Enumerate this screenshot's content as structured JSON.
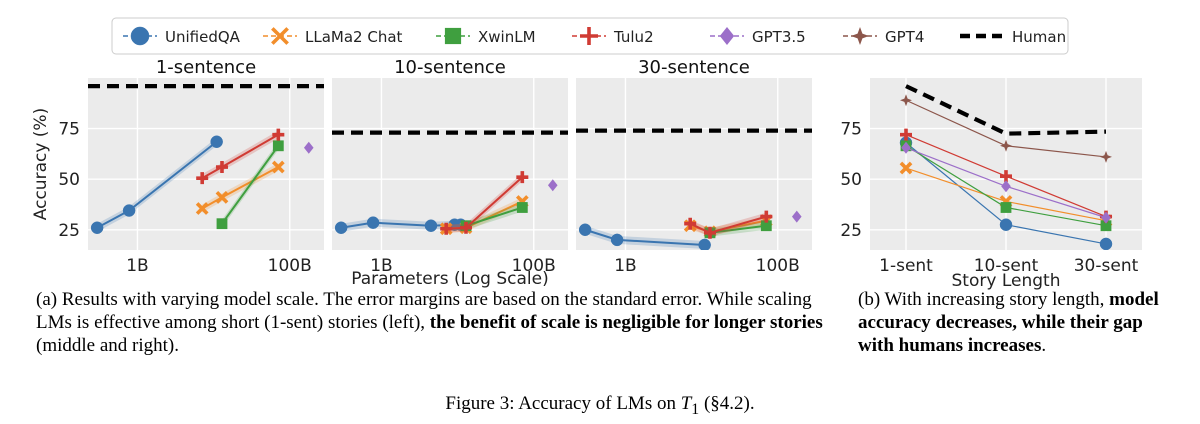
{
  "legend": [
    {
      "name": "UnifiedQA",
      "color": "#3a75b0",
      "marker": "circle"
    },
    {
      "name": "LLaMa2 Chat",
      "color": "#f28e2b",
      "marker": "x"
    },
    {
      "name": "XwinLM",
      "color": "#3f9f3f",
      "marker": "square"
    },
    {
      "name": "Tulu2",
      "color": "#d03b34",
      "marker": "plus"
    },
    {
      "name": "GPT3.5",
      "color": "#9c6fc9",
      "marker": "diamond"
    },
    {
      "name": "GPT4",
      "color": "#8c564b",
      "marker": "star"
    },
    {
      "name": "Human",
      "color": "#000000",
      "marker": "dash"
    }
  ],
  "chart_data": [
    {
      "type": "line",
      "title": "1-sentence",
      "xlabel": "Parameters (Log Scale)",
      "ylabel": "Accuracy (%)",
      "x_scale": "log10",
      "xlim_log10": [
        8.35,
        11.45
      ],
      "ylim": [
        15,
        100
      ],
      "yticks": [
        25,
        50,
        75
      ],
      "ytick_labels": [
        "25",
        "50",
        "75"
      ],
      "xticks_log10": [
        9,
        11
      ],
      "xtick_labels": [
        "1B",
        "100B"
      ],
      "human": 96,
      "series": [
        {
          "name": "UnifiedQA",
          "x_log10": [
            8.47,
            8.89,
            10.04
          ],
          "y": [
            26,
            34.5,
            68.5
          ]
        },
        {
          "name": "LLaMa2 Chat",
          "x_log10": [
            9.85,
            10.11,
            10.85
          ],
          "y": [
            35.5,
            41,
            56
          ]
        },
        {
          "name": "XwinLM",
          "x_log10": [
            10.11,
            10.85
          ],
          "y": [
            28,
            66.5
          ]
        },
        {
          "name": "Tulu2",
          "x_log10": [
            9.85,
            10.11,
            10.85
          ],
          "y": [
            50.5,
            56,
            72
          ]
        },
        {
          "name": "GPT3.5",
          "x_log10": [
            11.25
          ],
          "y": [
            65.5
          ]
        }
      ]
    },
    {
      "type": "line",
      "title": "10-sentence",
      "xlabel": "Parameters (Log Scale)",
      "x_scale": "log10",
      "xlim_log10": [
        8.35,
        11.45
      ],
      "ylim": [
        15,
        100
      ],
      "xticks_log10": [
        9,
        11
      ],
      "xtick_labels": [
        "1B",
        "100B"
      ],
      "human": 73,
      "series": [
        {
          "name": "UnifiedQA",
          "x_log10": [
            8.47,
            8.89,
            9.65,
            9.96,
            10.04
          ],
          "y": [
            26,
            28.5,
            27,
            27.5,
            27.5
          ]
        },
        {
          "name": "LLaMa2 Chat",
          "x_log10": [
            9.85,
            10.11,
            10.85
          ],
          "y": [
            25.5,
            26,
            39
          ]
        },
        {
          "name": "XwinLM",
          "x_log10": [
            10.11,
            10.85
          ],
          "y": [
            27,
            36
          ]
        },
        {
          "name": "Tulu2",
          "x_log10": [
            9.85,
            10.11,
            10.85
          ],
          "y": [
            25.5,
            26,
            51
          ]
        },
        {
          "name": "GPT3.5",
          "x_log10": [
            11.25
          ],
          "y": [
            47
          ]
        }
      ]
    },
    {
      "type": "line",
      "title": "30-sentence",
      "xlabel": "Parameters (Log Scale)",
      "x_scale": "log10",
      "xlim_log10": [
        8.35,
        11.45
      ],
      "ylim": [
        15,
        100
      ],
      "xticks_log10": [
        9,
        11
      ],
      "xtick_labels": [
        "1B",
        "100B"
      ],
      "human": 74,
      "series": [
        {
          "name": "UnifiedQA",
          "x_log10": [
            8.47,
            8.89,
            10.04
          ],
          "y": [
            25,
            20,
            17.5
          ]
        },
        {
          "name": "LLaMa2 Chat",
          "x_log10": [
            9.85,
            10.11,
            10.85
          ],
          "y": [
            27,
            24,
            29.5
          ]
        },
        {
          "name": "XwinLM",
          "x_log10": [
            10.11,
            10.85
          ],
          "y": [
            23.5,
            27
          ]
        },
        {
          "name": "Tulu2",
          "x_log10": [
            9.85,
            10.11,
            10.85
          ],
          "y": [
            28,
            23.5,
            31.5
          ]
        },
        {
          "name": "GPT3.5",
          "x_log10": [
            11.25
          ],
          "y": [
            31.5
          ]
        }
      ]
    },
    {
      "type": "line",
      "title": "",
      "xlabel": "Story Length",
      "categories": [
        "1-sent",
        "10-sent",
        "30-sent"
      ],
      "ylim": [
        15,
        100
      ],
      "yticks": [
        25,
        50,
        75
      ],
      "ytick_labels": [
        "25",
        "50",
        "75"
      ],
      "series": [
        {
          "name": "UnifiedQA",
          "values": [
            68,
            27.5,
            18
          ]
        },
        {
          "name": "LLaMa2 Chat",
          "values": [
            55.5,
            39,
            29.5
          ]
        },
        {
          "name": "XwinLM",
          "values": [
            66.5,
            36,
            27
          ]
        },
        {
          "name": "Tulu2",
          "values": [
            72,
            51.5,
            31.5
          ]
        },
        {
          "name": "GPT3.5",
          "values": [
            65.5,
            46.5,
            31
          ]
        },
        {
          "name": "GPT4",
          "values": [
            89,
            66.5,
            61
          ]
        },
        {
          "name": "Human",
          "values": [
            96,
            72.5,
            73.5
          ]
        }
      ]
    }
  ],
  "captions": {
    "a_normal": "(a) Results with varying model scale. The error margins are based on the standard error. While scaling LMs is effective among short (1-sent) stories (left), ",
    "a_bold": "the benefit of scale is negligible for longer stories",
    "a_end": " (middle and right).",
    "b_normal": "(b) With increasing story length, ",
    "b_bold": "model accuracy decreases, while their gap with humans increases",
    "b_end": ".",
    "fig_prefix": "Figure 3: Accuracy of LMs on ",
    "fig_T": "T",
    "fig_sub": "1",
    "fig_suffix": " (§4.2)."
  }
}
